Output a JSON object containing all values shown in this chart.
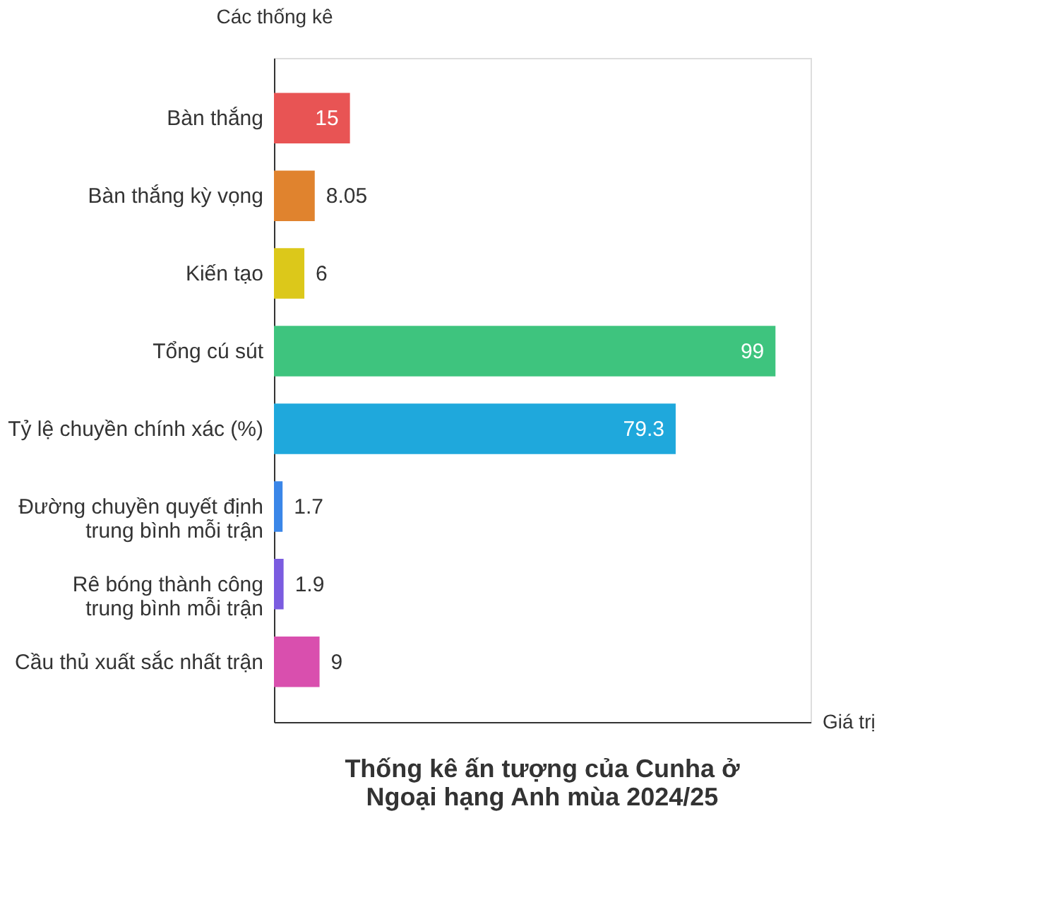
{
  "chart_data": {
    "type": "bar",
    "orientation": "horizontal",
    "title": "Thống kê ấn tượng của Cunha ở\nNgoại hạng Anh mùa 2024/25",
    "ylabel": "Các thống kê",
    "xlabel": "Giá trị",
    "categories": [
      "Bàn thắng",
      "Bàn thắng kỳ vọng",
      "Kiến tạo",
      "Tổng cú sút",
      "Tỷ lệ chuyền chính xác (%)",
      "Đường chuyền quyết định\ntrung bình mỗi trận",
      "Rê bóng thành công\ntrung bình mỗi trận",
      "Cầu thủ xuất sắc nhất trận"
    ],
    "values": [
      15,
      8.05,
      6,
      99,
      79.3,
      1.7,
      1.9,
      9
    ],
    "colors": [
      "#e85454",
      "#e0832e",
      "#dcc81a",
      "#3ec47e",
      "#1fa8dc",
      "#3a86e8",
      "#7b5ce0",
      "#d94fae"
    ],
    "data_labels": true,
    "grid": false,
    "legend": false
  }
}
